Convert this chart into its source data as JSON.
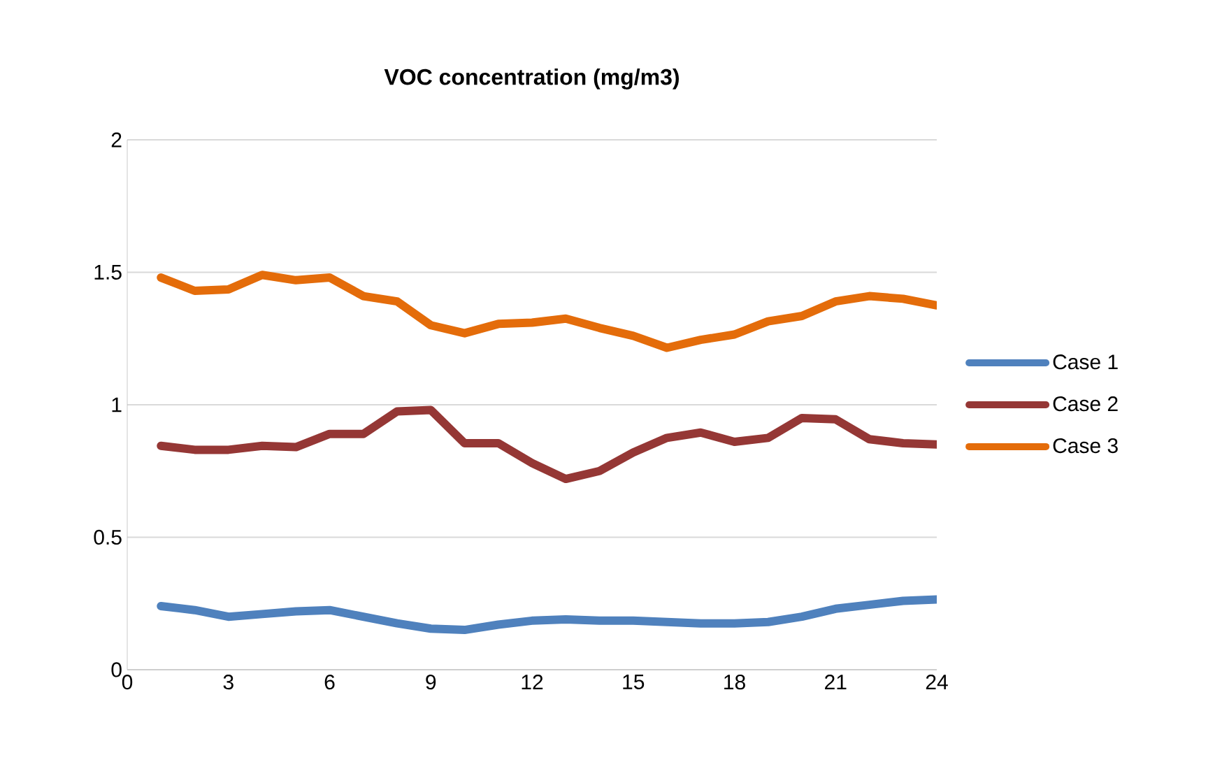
{
  "chart_data": {
    "type": "line",
    "title": "VOC concentration (mg/m3)",
    "x": [
      1,
      2,
      3,
      4,
      5,
      6,
      7,
      8,
      9,
      10,
      11,
      12,
      13,
      14,
      15,
      16,
      17,
      18,
      19,
      20,
      21,
      22,
      23,
      24
    ],
    "series": [
      {
        "name": "Case 1",
        "color": "#4f81bd",
        "values": [
          0.24,
          0.225,
          0.2,
          0.21,
          0.22,
          0.225,
          0.2,
          0.175,
          0.155,
          0.15,
          0.17,
          0.185,
          0.19,
          0.185,
          0.185,
          0.18,
          0.175,
          0.175,
          0.18,
          0.2,
          0.23,
          0.245,
          0.26,
          0.265
        ]
      },
      {
        "name": "Case 2",
        "color": "#953735",
        "values": [
          0.845,
          0.83,
          0.83,
          0.845,
          0.84,
          0.89,
          0.89,
          0.975,
          0.98,
          0.855,
          0.855,
          0.78,
          0.72,
          0.75,
          0.82,
          0.875,
          0.895,
          0.86,
          0.875,
          0.95,
          0.945,
          0.87,
          0.855,
          0.85
        ]
      },
      {
        "name": "Case 3",
        "color": "#e46c0a",
        "values": [
          1.48,
          1.43,
          1.435,
          1.49,
          1.47,
          1.48,
          1.41,
          1.39,
          1.3,
          1.27,
          1.305,
          1.31,
          1.325,
          1.29,
          1.26,
          1.215,
          1.245,
          1.265,
          1.315,
          1.335,
          1.39,
          1.41,
          1.4,
          1.375
        ]
      }
    ],
    "xlim": [
      0,
      24
    ],
    "xticks": [
      0,
      3,
      6,
      9,
      12,
      15,
      18,
      21,
      24
    ],
    "ylim": [
      0,
      2
    ],
    "yticks": [
      0,
      0.5,
      1,
      1.5,
      2
    ],
    "grid": "y",
    "legend": "right",
    "marker": "none",
    "line_style": "solid"
  }
}
